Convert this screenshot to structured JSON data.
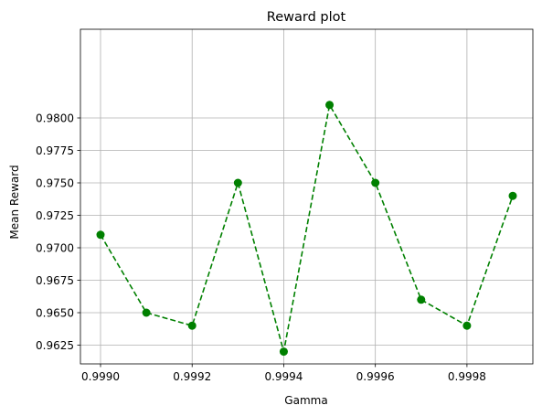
{
  "colors": {
    "series": "#008000",
    "grid": "#b0b0b0",
    "axis": "#000000",
    "background": "#ffffff"
  },
  "chart_data": {
    "type": "line",
    "title": "Reward plot",
    "xlabel": "Gamma",
    "ylabel": "Mean Reward",
    "x": [
      0.999,
      0.9991,
      0.9992,
      0.9993,
      0.9994,
      0.9995,
      0.9996,
      0.9997,
      0.9998,
      0.9999
    ],
    "series": [
      {
        "values": [
          0.971,
          0.965,
          0.964,
          0.975,
          0.962,
          0.981,
          0.975,
          0.966,
          0.964,
          0.974
        ],
        "line_style": "dashed",
        "marker": "circle"
      }
    ],
    "xlim": [
      0.999,
      0.9999
    ],
    "ylim": [
      0.961,
      0.982
    ],
    "xticks": [
      0.999,
      0.9992,
      0.9994,
      0.9996,
      0.9998
    ],
    "xtick_labels": [
      "0.9990",
      "0.9992",
      "0.9994",
      "0.9996",
      "0.9998"
    ],
    "yticks": [
      0.9625,
      0.965,
      0.9675,
      0.97,
      0.9725,
      0.975,
      0.9775,
      0.98
    ],
    "ytick_labels": [
      "0.9625",
      "0.9650",
      "0.9675",
      "0.9700",
      "0.9725",
      "0.9750",
      "0.9775",
      "0.9800"
    ],
    "grid": true,
    "legend": "none"
  }
}
